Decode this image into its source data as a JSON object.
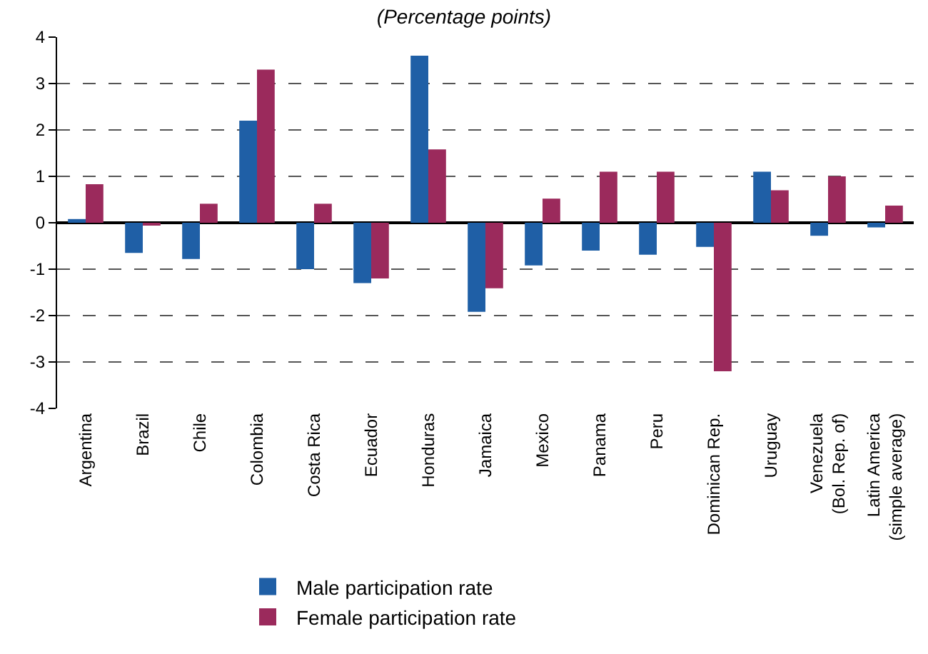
{
  "chart_data": {
    "type": "bar",
    "subtitle": "(Percentage points)",
    "categories": [
      "Argentina",
      "Brazil",
      "Chile",
      "Colombia",
      "Costa Rica",
      "Ecuador",
      "Honduras",
      "Jamaica",
      "Mexico",
      "Panama",
      "Peru",
      "Dominican Rep.",
      "Uruguay",
      "Venezuela\n(Bol. Rep. of)",
      "Latin America\n(simple average)"
    ],
    "series": [
      {
        "name": "Male participation rate",
        "color": "#1f5fa6",
        "values": [
          0.08,
          -0.65,
          -0.78,
          2.2,
          -1.0,
          -1.3,
          3.6,
          -1.92,
          -0.92,
          -0.6,
          -0.69,
          -0.52,
          1.1,
          -0.28,
          -0.1
        ]
      },
      {
        "name": "Female participation rate",
        "color": "#9b2a5c",
        "values": [
          0.83,
          -0.05,
          0.41,
          3.3,
          0.41,
          -1.2,
          1.58,
          -1.41,
          0.52,
          1.1,
          1.1,
          -3.2,
          0.7,
          1.0,
          0.37
        ]
      }
    ],
    "ylim": [
      -4,
      4
    ],
    "yticks": [
      -4,
      -3,
      -2,
      -1,
      0,
      1,
      2,
      3,
      4
    ],
    "grid": "y",
    "legend": "bottom"
  }
}
